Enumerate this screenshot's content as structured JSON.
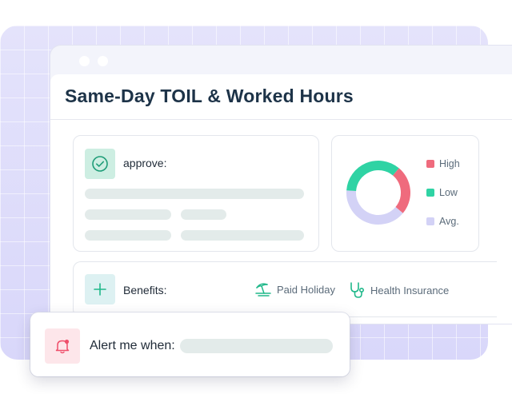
{
  "page": {
    "title": "Same-Day TOIL & Worked Hours"
  },
  "approve_card": {
    "label": "approve:",
    "icon": "check-circle-icon"
  },
  "chart": {
    "legend": [
      {
        "label": "High",
        "color": "#ef6b7d"
      },
      {
        "label": "Low",
        "color": "#2fd3a4"
      },
      {
        "label": "Avg.",
        "color": "#d3d2f6"
      }
    ]
  },
  "chart_data": {
    "type": "pie",
    "categories": [
      "High",
      "Low",
      "Avg."
    ],
    "values": [
      25,
      35,
      40
    ],
    "colors": [
      "#ef6b7d",
      "#2fd3a4",
      "#d3d2f6"
    ],
    "legend_position": "right"
  },
  "benefits": {
    "label": "Benefits:",
    "icon": "plus-icon",
    "items": [
      {
        "label": "Paid Holiday",
        "icon": "beach-umbrella-icon"
      },
      {
        "label": "Health Insurance",
        "icon": "stethoscope-icon"
      }
    ]
  },
  "alert": {
    "label": "Alert me when:",
    "icon": "bell-icon"
  },
  "colors": {
    "accent": "#20b88a",
    "alert": "#ef4f6b"
  }
}
